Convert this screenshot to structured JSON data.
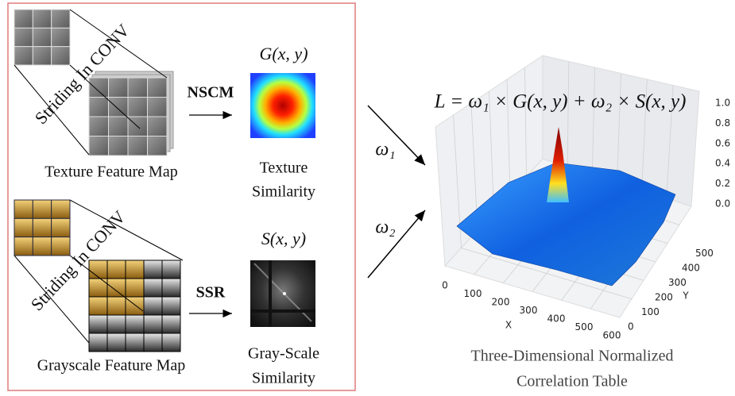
{
  "texture_branch": {
    "conv_label": "Striding In CONV",
    "map_label": "Texture Feature Map",
    "operator": "NSCM",
    "output_formula": "G(x, y)",
    "output_label": [
      "Texture",
      "Similarity"
    ]
  },
  "grayscale_branch": {
    "conv_label": "Striding In CONV",
    "map_label": "Grayscale Feature Map",
    "operator": "SSR",
    "output_formula": "S(x, y)",
    "output_label": [
      "Gray-Scale",
      "Similarity"
    ]
  },
  "weights": [
    "ω₁",
    "ω₂"
  ],
  "plot": {
    "formula": "L = ω₁ × G(x, y) + ω₂ × S(x, y)",
    "z_ticks": [
      "1.0",
      "0.8",
      "0.6",
      "0.4",
      "0.2",
      "0.0"
    ],
    "x_ticks": [
      "0",
      "100",
      "200",
      "300",
      "400",
      "500",
      "600"
    ],
    "y_ticks": [
      "0",
      "100",
      "200",
      "300",
      "400",
      "500"
    ],
    "x_label": "X",
    "y_label": "Y",
    "caption": [
      "Three-Dimensional Normalized",
      "Correlation Table"
    ]
  }
}
